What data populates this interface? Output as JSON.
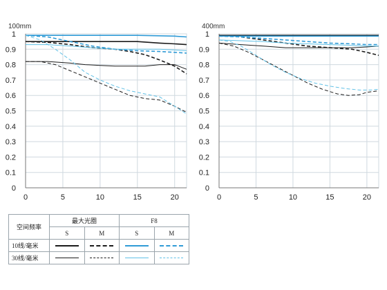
{
  "colors": {
    "black": "#1a1a1a",
    "blue": "#2e9ad6",
    "light_blue": "#5fc0e6",
    "grid": "#cfd8df"
  },
  "chart_data": [
    {
      "type": "line",
      "title": "100mm",
      "xlim": [
        0,
        21.6
      ],
      "ylim": [
        0,
        1
      ],
      "xticks": [
        0,
        5,
        10,
        15,
        20
      ],
      "yticks": [
        0,
        0.1,
        0.2,
        0.3,
        0.4,
        0.5,
        0.6,
        0.7,
        0.8,
        0.9,
        1
      ],
      "ytick_labels": [
        "0",
        "0.1",
        "0.2",
        "0.3",
        "0.4",
        "0.5",
        "0.6",
        "0.7",
        "0.8",
        "0.9",
        "1"
      ],
      "grid": true,
      "series": [
        {
          "key": "open-10-s",
          "color": "#1a1a1a",
          "dash": false,
          "width": 1.6,
          "x": [
            0,
            3,
            6,
            9,
            12,
            15,
            18,
            20,
            21.6
          ],
          "y": [
            0.95,
            0.95,
            0.95,
            0.95,
            0.95,
            0.95,
            0.94,
            0.935,
            0.93
          ]
        },
        {
          "key": "open-10-m",
          "color": "#1a1a1a",
          "dash": true,
          "width": 1.6,
          "x": [
            0,
            3,
            6,
            9,
            12,
            14,
            16,
            18,
            20,
            21.6
          ],
          "y": [
            0.95,
            0.945,
            0.93,
            0.91,
            0.9,
            0.885,
            0.865,
            0.83,
            0.79,
            0.74
          ]
        },
        {
          "key": "open-30-s",
          "color": "#1a1a1a",
          "dash": false,
          "width": 1.0,
          "x": [
            0,
            3,
            6,
            8,
            10,
            12,
            14,
            16,
            18,
            20,
            21.6
          ],
          "y": [
            0.82,
            0.82,
            0.81,
            0.8,
            0.795,
            0.79,
            0.79,
            0.79,
            0.8,
            0.8,
            0.77
          ]
        },
        {
          "key": "open-30-m",
          "color": "#1a1a1a",
          "dash": true,
          "width": 1.0,
          "x": [
            0,
            2,
            4,
            6,
            8,
            10,
            12,
            14,
            16,
            18,
            20,
            21.6
          ],
          "y": [
            0.82,
            0.82,
            0.8,
            0.76,
            0.72,
            0.68,
            0.64,
            0.6,
            0.58,
            0.57,
            0.53,
            0.49
          ]
        },
        {
          "key": "f8-10-s",
          "color": "#2e9ad6",
          "dash": false,
          "width": 1.6,
          "x": [
            0,
            5,
            10,
            15,
            20,
            21.6
          ],
          "y": [
            0.99,
            0.99,
            0.99,
            0.99,
            0.985,
            0.98
          ]
        },
        {
          "key": "f8-10-m",
          "color": "#2e9ad6",
          "dash": true,
          "width": 1.6,
          "x": [
            0,
            3,
            6,
            9,
            12,
            15,
            18,
            20,
            21.6
          ],
          "y": [
            0.99,
            0.98,
            0.95,
            0.92,
            0.9,
            0.89,
            0.885,
            0.88,
            0.875
          ]
        },
        {
          "key": "f8-30-s",
          "color": "#5fc0e6",
          "dash": false,
          "width": 1.0,
          "x": [
            0,
            3,
            6,
            9,
            12,
            15,
            18,
            20,
            21.6
          ],
          "y": [
            0.93,
            0.93,
            0.92,
            0.91,
            0.9,
            0.9,
            0.9,
            0.895,
            0.89
          ]
        },
        {
          "key": "f8-30-m",
          "color": "#5fc0e6",
          "dash": true,
          "width": 1.0,
          "x": [
            0,
            2,
            4,
            6,
            8,
            10,
            12,
            14,
            16,
            18,
            20,
            21.6
          ],
          "y": [
            0.99,
            0.96,
            0.9,
            0.83,
            0.75,
            0.7,
            0.66,
            0.63,
            0.61,
            0.59,
            0.53,
            0.48
          ]
        }
      ]
    },
    {
      "type": "line",
      "title": "400mm",
      "xlim": [
        0,
        21.6
      ],
      "ylim": [
        0,
        1
      ],
      "xticks": [
        0,
        5,
        10,
        15,
        20
      ],
      "yticks": [
        0,
        0.1,
        0.2,
        0.3,
        0.4,
        0.5,
        0.6,
        0.7,
        0.8,
        0.9,
        1
      ],
      "ytick_labels": [
        "0",
        "0.1",
        "0.2",
        "0.3",
        "0.4",
        "0.5",
        "0.6",
        "0.7",
        "0.8",
        "0.9",
        "1"
      ],
      "grid": true,
      "series": [
        {
          "key": "open-10-s",
          "color": "#1a1a1a",
          "dash": false,
          "width": 1.6,
          "x": [
            0,
            5,
            10,
            15,
            20,
            21.6
          ],
          "y": [
            0.99,
            0.99,
            0.99,
            0.99,
            0.99,
            0.99
          ]
        },
        {
          "key": "open-10-m",
          "color": "#1a1a1a",
          "dash": true,
          "width": 1.6,
          "x": [
            0,
            3,
            6,
            9,
            12,
            15,
            18,
            20,
            21.6
          ],
          "y": [
            0.99,
            0.98,
            0.96,
            0.94,
            0.92,
            0.91,
            0.9,
            0.88,
            0.86
          ]
        },
        {
          "key": "open-30-s",
          "color": "#1a1a1a",
          "dash": false,
          "width": 1.0,
          "x": [
            0,
            3,
            6,
            9,
            12,
            15,
            18,
            20,
            21.6
          ],
          "y": [
            0.94,
            0.93,
            0.92,
            0.91,
            0.91,
            0.91,
            0.91,
            0.915,
            0.92
          ]
        },
        {
          "key": "open-30-m",
          "color": "#1a1a1a",
          "dash": true,
          "width": 1.0,
          "x": [
            0,
            2,
            4,
            6,
            8,
            10,
            12,
            14,
            16,
            17.5,
            19,
            20,
            21.6
          ],
          "y": [
            0.94,
            0.92,
            0.88,
            0.83,
            0.78,
            0.73,
            0.68,
            0.64,
            0.61,
            0.6,
            0.605,
            0.62,
            0.63
          ]
        },
        {
          "key": "f8-10-s",
          "color": "#2e9ad6",
          "dash": false,
          "width": 1.6,
          "x": [
            0,
            5,
            10,
            15,
            20,
            21.6
          ],
          "y": [
            0.985,
            0.985,
            0.985,
            0.985,
            0.985,
            0.985
          ]
        },
        {
          "key": "f8-10-m",
          "color": "#2e9ad6",
          "dash": true,
          "width": 1.6,
          "x": [
            0,
            3,
            6,
            9,
            12,
            15,
            18,
            20,
            21.6
          ],
          "y": [
            0.985,
            0.98,
            0.97,
            0.96,
            0.95,
            0.94,
            0.935,
            0.93,
            0.93
          ]
        },
        {
          "key": "f8-30-s",
          "color": "#5fc0e6",
          "dash": false,
          "width": 1.0,
          "x": [
            0,
            3,
            6,
            9,
            12,
            15,
            18,
            20,
            21.6
          ],
          "y": [
            0.96,
            0.955,
            0.95,
            0.94,
            0.935,
            0.93,
            0.925,
            0.92,
            0.92
          ]
        },
        {
          "key": "f8-30-m",
          "color": "#5fc0e6",
          "dash": true,
          "width": 1.0,
          "x": [
            0,
            1.5,
            3,
            5,
            7,
            9,
            11,
            13,
            15,
            17,
            19,
            20.5,
            21.6
          ],
          "y": [
            0.96,
            0.95,
            0.92,
            0.86,
            0.8,
            0.75,
            0.71,
            0.68,
            0.66,
            0.645,
            0.635,
            0.635,
            0.64
          ]
        }
      ]
    }
  ],
  "legend": {
    "header_label": "空间频率",
    "group_open": "最大光圈",
    "group_f8": "F8",
    "sub_s": "S",
    "sub_m": "M",
    "row_10": "10线/毫米",
    "row_30": "30线/毫米"
  }
}
